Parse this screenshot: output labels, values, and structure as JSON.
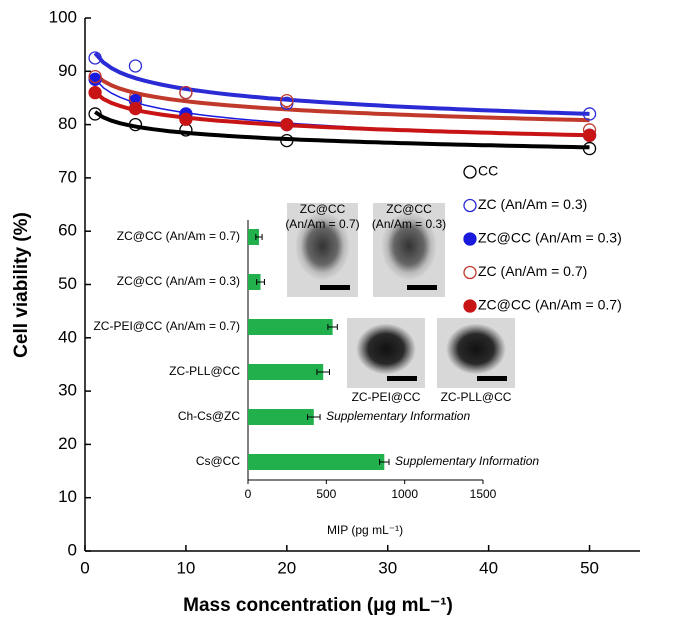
{
  "chart_data": [
    {
      "type": "scatter",
      "x_label": "Mass concentration (μg mL⁻¹)",
      "y_label": "Cell viability (%)",
      "x": [
        1,
        5,
        10,
        20,
        50
      ],
      "xlim": [
        0,
        55
      ],
      "xticks": [
        0,
        10,
        20,
        30,
        40,
        50
      ],
      "ylim": [
        0,
        100
      ],
      "yticks": [
        0,
        10,
        20,
        30,
        40,
        50,
        60,
        70,
        80,
        90,
        100
      ],
      "fit": "logarithmic",
      "legend": "right",
      "series": [
        {
          "name": "CC",
          "color": "#000000",
          "marker": "open",
          "values": [
            82,
            80,
            79,
            77,
            75.5
          ]
        },
        {
          "name": "ZC (An/Am = 0.3)",
          "color": "#2b2bd6",
          "marker": "open",
          "values": [
            92.5,
            91,
            86,
            84,
            82
          ]
        },
        {
          "name": "ZC@CC (An/Am = 0.3)",
          "color": "#1a1adf",
          "marker": "filled",
          "values": [
            88.5,
            84.5,
            82,
            80,
            78
          ]
        },
        {
          "name": "ZC (An/Am = 0.7)",
          "color": "#c0392b",
          "marker": "open",
          "values": [
            89,
            85,
            86,
            84.5,
            79
          ]
        },
        {
          "name": "ZC@CC (An/Am = 0.7)",
          "color": "#c81414",
          "marker": "filled",
          "values": [
            86,
            83,
            81,
            80,
            78
          ]
        }
      ]
    },
    {
      "type": "hbar",
      "x_label": "MIP (pg mL⁻¹)",
      "categories": [
        "ZC@CC (An/Am = 0.7)",
        "ZC@CC (An/Am = 0.3)",
        "ZC-PEI@CC (An/Am = 0.7)",
        "ZC-PLL@CC",
        "Ch-Cs@ZC",
        "Cs@CC"
      ],
      "values": [
        70,
        80,
        540,
        480,
        420,
        870
      ],
      "errors": [
        20,
        25,
        30,
        40,
        40,
        30
      ],
      "annotations": [
        null,
        null,
        null,
        null,
        "Supplementary Information",
        "Supplementary Information"
      ],
      "color": "#22b04c",
      "xlim": [
        0,
        1500
      ],
      "xticks": [
        0,
        500,
        1000,
        1500
      ],
      "images": [
        {
          "lines": [
            "ZC@CC",
            "(An/Am = 0.7)"
          ]
        },
        {
          "lines": [
            "ZC@CC",
            "(An/Am = 0.3)"
          ]
        },
        {
          "lines": [
            "ZC-PEI@CC"
          ]
        },
        {
          "lines": [
            "ZC-PLL@CC"
          ]
        }
      ]
    }
  ]
}
